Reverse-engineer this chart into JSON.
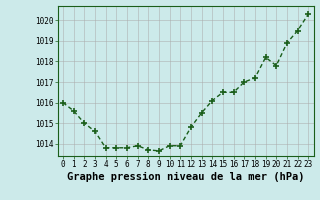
{
  "x": [
    0,
    1,
    2,
    3,
    4,
    5,
    6,
    7,
    8,
    9,
    10,
    11,
    12,
    13,
    14,
    15,
    16,
    17,
    18,
    19,
    20,
    21,
    22,
    23
  ],
  "y": [
    1016.0,
    1015.6,
    1015.0,
    1014.6,
    1013.8,
    1013.8,
    1013.8,
    1013.9,
    1013.7,
    1013.65,
    1013.9,
    1013.9,
    1014.8,
    1015.5,
    1016.1,
    1016.5,
    1016.5,
    1017.0,
    1017.2,
    1018.2,
    1017.8,
    1018.9,
    1019.5,
    1020.3
  ],
  "line_color": "#1a5e1a",
  "marker": "+",
  "marker_size": 5,
  "bg_color": "#cceaea",
  "grid_color": "#aaaaaa",
  "xlabel": "Graphe pression niveau de la mer (hPa)",
  "xlabel_fontsize": 7.5,
  "ylim": [
    1013.4,
    1020.7
  ],
  "yticks": [
    1014,
    1015,
    1016,
    1017,
    1018,
    1019,
    1020
  ],
  "xtick_labels": [
    "0",
    "1",
    "2",
    "3",
    "4",
    "5",
    "6",
    "7",
    "8",
    "9",
    "10",
    "11",
    "12",
    "13",
    "14",
    "15",
    "16",
    "17",
    "18",
    "19",
    "20",
    "21",
    "22",
    "23"
  ],
  "tick_fontsize": 5.5,
  "line_width": 1.0,
  "marker_edge_width": 1.2
}
